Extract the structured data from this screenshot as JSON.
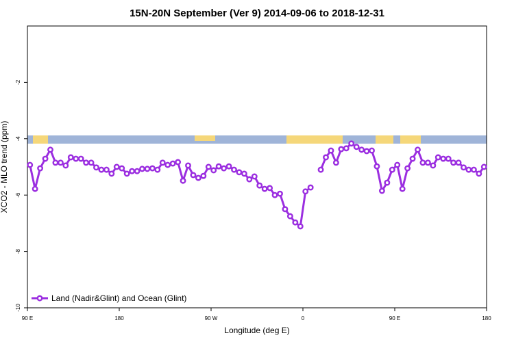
{
  "chart_data": {
    "type": "line",
    "title": "15N-20N September (Ver 9)   2014-09-06 to 2018-12-31",
    "xlabel": "Longitude (deg E)",
    "ylabel": "XCO2 - MLO trend (ppm)",
    "x": [
      92.5,
      97.5,
      102.5,
      107.5,
      112.5,
      117.5,
      122.5,
      127.5,
      132.5,
      137.5,
      142.5,
      147.5,
      152.5,
      157.5,
      162.5,
      167.5,
      172.5,
      177.5,
      182.5,
      187.5,
      192.5,
      197.5,
      202.5,
      207.5,
      212.5,
      217.5,
      222.5,
      227.5,
      232.5,
      237.5,
      242.5,
      247.5,
      252.5,
      257.5,
      262.5,
      267.5,
      272.5,
      277.5,
      282.5,
      287.5,
      292.5,
      297.5,
      302.5,
      307.5,
      312.5,
      317.5,
      322.5,
      327.5,
      332.5,
      337.5,
      342.5,
      347.5,
      352.5,
      357.5,
      362.5,
      367.5,
      372.5,
      377.5,
      382.5,
      387.5,
      392.5,
      397.5,
      402.5,
      407.5,
      412.5,
      417.5,
      422.5,
      427.5,
      432.5,
      437.5,
      442.5,
      447.5,
      452.5,
      457.5,
      462.5,
      467.5,
      472.5,
      477.5,
      482.5,
      487.5,
      492.5,
      497.5,
      502.5,
      507.5,
      512.5,
      517.5,
      522.5,
      527.5,
      532.5,
      537.5
    ],
    "series": [
      {
        "name": "Land (Nadir&Glint) and Ocean (Glint)",
        "color": "#9b2ee0",
        "values": [
          -4.93,
          -5.78,
          -5.05,
          -4.71,
          -4.39,
          -4.85,
          -4.85,
          -4.95,
          -4.66,
          -4.71,
          -4.71,
          -4.85,
          -4.85,
          -5.02,
          -5.1,
          -5.1,
          -5.24,
          -5.0,
          -5.05,
          -5.24,
          -5.15,
          -5.15,
          -5.07,
          -5.07,
          -5.05,
          -5.1,
          -4.85,
          -4.93,
          -4.88,
          -4.83,
          -5.49,
          -4.95,
          -5.29,
          -5.39,
          -5.32,
          -5.0,
          -5.12,
          -4.98,
          -5.05,
          -4.98,
          -5.1,
          -5.19,
          -5.24,
          -5.44,
          -5.34,
          -5.66,
          -5.78,
          -5.75,
          -6.0,
          -5.95,
          -6.5,
          -6.75,
          -6.97,
          -7.11,
          -5.87,
          -5.73,
          null,
          -5.1,
          -4.66,
          -4.42,
          -4.85,
          -4.37,
          -4.34,
          -4.17,
          -4.29,
          -4.39,
          -4.44,
          -4.42,
          -4.98,
          -5.85,
          -5.56,
          -5.1,
          -4.93,
          -5.78,
          -5.05,
          -4.71,
          -4.39,
          -4.85,
          -4.85,
          -4.95,
          -4.66,
          -4.71,
          -4.71,
          -4.85,
          -4.85,
          -5.02,
          -5.1,
          -5.1,
          -5.24,
          -5.0
        ]
      }
    ],
    "xlim": [
      90,
      540
    ],
    "xticks": [
      {
        "value": 90,
        "label": "90 E"
      },
      180,
      {
        "value": 270,
        "label": "90 W"
      },
      {
        "value": 360,
        "label": "0"
      },
      {
        "value": 450,
        "label": "90 E"
      },
      180
    ],
    "ylim": [
      -10,
      0
    ],
    "yticks": [
      -10,
      -8,
      -6,
      -4,
      -2
    ],
    "legend": "lower left"
  }
}
